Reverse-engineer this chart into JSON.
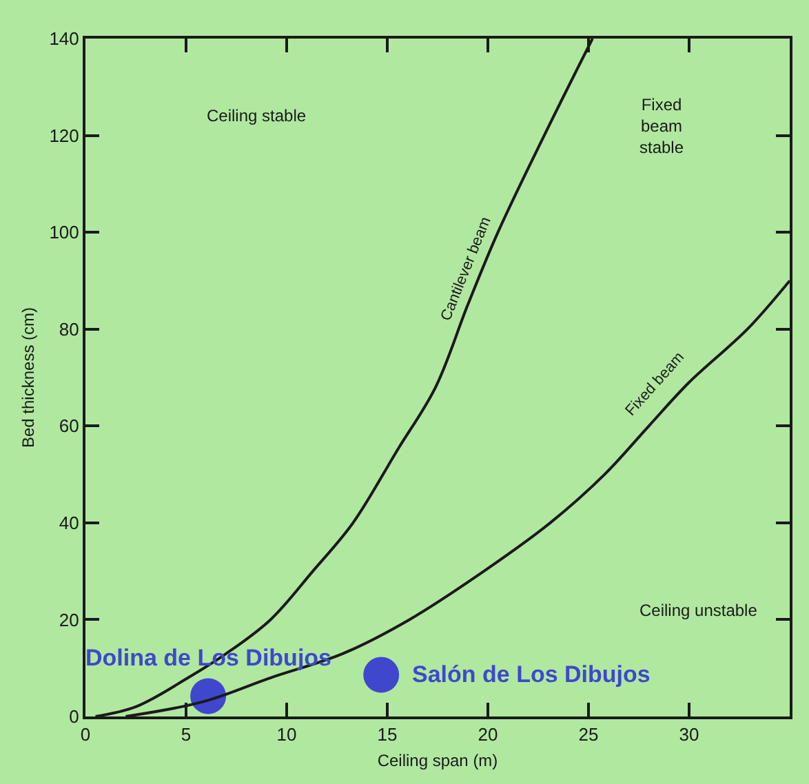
{
  "chart_data": {
    "type": "line",
    "xlabel": "Ceiling span (m)",
    "ylabel": "Bed thickness (cm)",
    "xlim": [
      0,
      35
    ],
    "xticks": [
      0,
      5,
      10,
      15,
      20,
      25,
      30
    ],
    "ylim": [
      0,
      140
    ],
    "yticks": [
      0,
      20,
      40,
      60,
      80,
      100,
      120,
      140
    ],
    "grid": false,
    "legend": false,
    "marker": "none",
    "line_style": "solid",
    "series": [
      {
        "name": "Cantilever beam",
        "color": "#1a1a1a",
        "x": [
          0.5,
          2.5,
          5.1,
          7,
          9.2,
          11.3,
          13.3,
          15.5,
          17.4,
          19,
          20.5,
          22.8,
          25.2
        ],
        "values": [
          0,
          2,
          8,
          13,
          20,
          30,
          40,
          55,
          68,
          85,
          100,
          120,
          140
        ]
      },
      {
        "name": "Fixed beam",
        "color": "#1a1a1a",
        "x": [
          2,
          5.8,
          9.2,
          12.8,
          16.1,
          19.8,
          23.1,
          25.8,
          28,
          30,
          32.9,
          35
        ],
        "values": [
          0,
          3,
          8,
          13,
          20,
          30,
          40,
          50,
          60,
          69,
          80,
          90
        ]
      },
      {
        "name": "Dolina de Los Dibujos",
        "type": "scatter",
        "marker": "circle",
        "color": "#3f48cc",
        "x": [
          6.1
        ],
        "values": [
          4.2
        ]
      },
      {
        "name": "Salón de Los Dibujos",
        "type": "scatter",
        "marker": "circle",
        "color": "#3f48cc",
        "x": [
          14.7
        ],
        "values": [
          8.6
        ]
      }
    ],
    "annotations": [
      "Ceiling stable",
      "Fixed beam stable",
      "Ceiling unstable"
    ]
  }
}
